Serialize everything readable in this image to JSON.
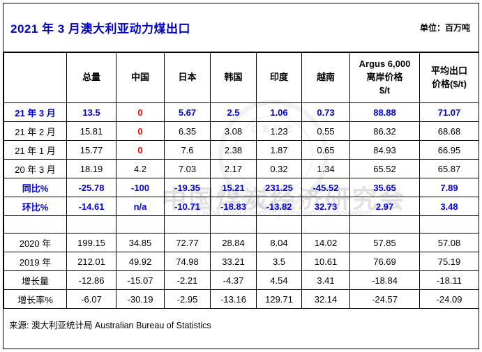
{
  "title": "2021 年 3 月澳大利亚动力煤出口",
  "unit_label": "单位：百万吨",
  "source_line": "来源: 澳大利亚统计局  Australian Bureau of Statistics",
  "watermark": {
    "seal_text": "CERC",
    "line_cn": "中国煤炭经济研究会",
    "line_en": "China Coal Economy Research Association"
  },
  "colors": {
    "title_blue": "#0000CC",
    "accent_blue": "#0000E0",
    "negative_red": "#FF0000",
    "grid_black": "#000000"
  },
  "chart_data": {
    "type": "table",
    "title": "2021 年 3 月澳大利亚动力煤出口",
    "unit": "百万吨",
    "columns": [
      "",
      "总量",
      "中国",
      "日本",
      "韩国",
      "印度",
      "越南",
      "Argus 6,000\n离岸价格\n$/t",
      "平均出口\n价格($/t)"
    ],
    "rows": [
      {
        "label": "21 年 3 月",
        "cls": "b-blue",
        "red_cols": [
          1
        ],
        "values": [
          "13.5",
          "0",
          "5.67",
          "2.5",
          "1.06",
          "0.73",
          "88.88",
          "71.07"
        ]
      },
      {
        "label": "21 年 2 月",
        "cls": "norm",
        "red_cols": [
          1
        ],
        "values": [
          "15.81",
          "0",
          "6.35",
          "3.08",
          "1.23",
          "0.55",
          "86.32",
          "68.68"
        ]
      },
      {
        "label": "21 年 1 月",
        "cls": "norm",
        "red_cols": [
          1
        ],
        "values": [
          "15.77",
          "0",
          "7.6",
          "2.38",
          "1.87",
          "0.65",
          "84.93",
          "66.95"
        ]
      },
      {
        "label": "20 年 3 月",
        "cls": "norm",
        "red_cols": [],
        "values": [
          "18.19",
          "4.2",
          "7.03",
          "2.17",
          "0.32",
          "1.34",
          "65.52",
          "65.87"
        ]
      },
      {
        "label": "同比%",
        "cls": "b-blue",
        "red_cols": [],
        "values": [
          "-25.78",
          "-100",
          "-19.35",
          "15.21",
          "231.25",
          "-45.52",
          "35.65",
          "7.89"
        ]
      },
      {
        "label": "环比%",
        "cls": "b-blue",
        "red_cols": [],
        "values": [
          "-14.61",
          "n/a",
          "-10.71",
          "-18.83",
          "-13.82",
          "32.73",
          "2.97",
          "3.48"
        ]
      },
      {
        "label": "",
        "cls": "norm",
        "red_cols": [],
        "empty": true,
        "values": [
          "",
          "",
          "",
          "",
          "",
          "",
          "",
          ""
        ]
      },
      {
        "label": "2020 年",
        "cls": "norm",
        "red_cols": [],
        "values": [
          "199.15",
          "34.85",
          "72.77",
          "28.84",
          "8.04",
          "14.02",
          "57.85",
          "57.08"
        ]
      },
      {
        "label": "2019 年",
        "cls": "norm",
        "red_cols": [],
        "values": [
          "212.01",
          "49.92",
          "74.98",
          "33.21",
          "3.5",
          "10.61",
          "76.69",
          "75.19"
        ]
      },
      {
        "label": "增长量",
        "cls": "norm",
        "red_cols": [],
        "values": [
          "-12.86",
          "-15.07",
          "-2.21",
          "-4.37",
          "4.54",
          "3.41",
          "-18.84",
          "-18.11"
        ]
      },
      {
        "label": "增长率%",
        "cls": "norm",
        "red_cols": [],
        "values": [
          "-6.07",
          "-30.19",
          "-2.95",
          "-13.16",
          "129.71",
          "32.14",
          "-24.57",
          "-24.09"
        ]
      }
    ]
  }
}
